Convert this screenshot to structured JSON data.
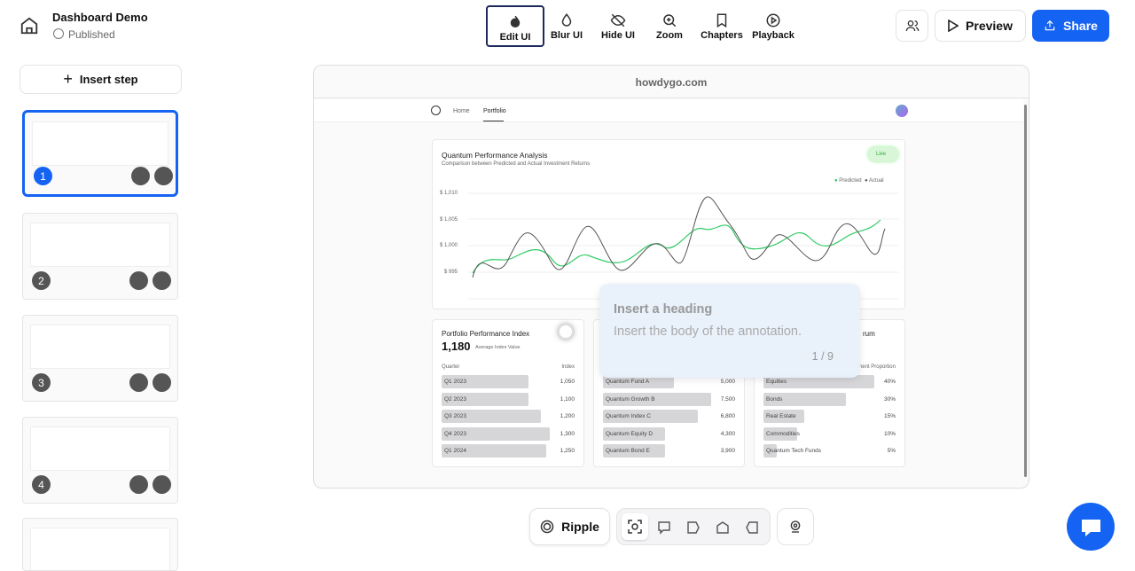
{
  "header": {
    "title": "Dashboard Demo",
    "status": "Published",
    "tools": [
      "Edit UI",
      "Blur UI",
      "Hide UI",
      "Zoom",
      "Chapters",
      "Playback"
    ],
    "preview": "Preview",
    "share": "Share"
  },
  "sidebar": {
    "insert_step": "Insert step",
    "steps": [
      1,
      2,
      3,
      4
    ]
  },
  "browser": {
    "url": "howdygo.com",
    "nav": [
      "Home",
      "Portfolio"
    ]
  },
  "chart_card": {
    "title": "Quantum Performance Analysis",
    "subtitle": "Comparison between Predicted and Actual Investment Returns",
    "badge": "Live",
    "legend": [
      "Predicted",
      "Actual"
    ],
    "yticks": [
      "$ 1,010",
      "$ 1,005",
      "$ 1,000",
      "$ 995"
    ]
  },
  "index_card": {
    "title": "Portfolio Performance Index",
    "value": "1,180",
    "value_label": "Average Index Value",
    "columns": [
      "Quarter",
      "Index"
    ],
    "rows": [
      [
        "Q1 2023",
        "1,050"
      ],
      [
        "Q2 2023",
        "1,100"
      ],
      [
        "Q3 2023",
        "1,200"
      ],
      [
        "Q4 2023",
        "1,300"
      ],
      [
        "Q1 2024",
        "1,250"
      ]
    ]
  },
  "funds_card": {
    "rows": [
      [
        "Quantum Fund A",
        "5,000"
      ],
      [
        "Quantum Growth B",
        "7,500"
      ],
      [
        "Quantum Index C",
        "6,800"
      ],
      [
        "Quantum Equity D",
        "4,300"
      ],
      [
        "Quantum Bond E",
        "3,900"
      ]
    ]
  },
  "allocation_card": {
    "title_fragment": "rum",
    "column_fragment": "ment Proportion",
    "rows": [
      [
        "Equities",
        "40%"
      ],
      [
        "Bonds",
        "30%"
      ],
      [
        "Real Estate",
        "15%"
      ],
      [
        "Commodities",
        "10%"
      ],
      [
        "Quantum Tech Funds",
        "5%"
      ]
    ]
  },
  "annotation": {
    "heading": "Insert a heading",
    "body": "Insert the body of the annotation.",
    "counter": "1 / 9"
  },
  "toolbar": {
    "ripple": "Ripple"
  }
}
